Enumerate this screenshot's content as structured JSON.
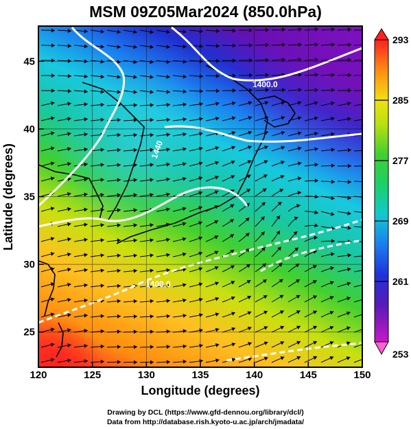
{
  "title": "MSM 09Z05Mar2024 (850.0hPa)",
  "x_axis": {
    "label": "Longitude (degrees)",
    "ticks": [
      "120",
      "125",
      "130",
      "135",
      "140",
      "145",
      "150"
    ],
    "range": [
      120,
      150
    ]
  },
  "y_axis": {
    "label": "Latitude  (degrees)",
    "ticks": [
      "25",
      "30",
      "35",
      "40",
      "45"
    ],
    "range": [
      22.4,
      47.6
    ]
  },
  "colorbar": {
    "ticks": [
      "293",
      "285",
      "277",
      "269",
      "261",
      "253"
    ],
    "range": [
      253,
      293
    ]
  },
  "contour_labels": [
    "1400.0",
    "1440",
    "1400.0"
  ],
  "credits": [
    "Drawing by DCL (https://www.gfd-dennou.org/library/dcl/)",
    "Data from http://database.rish.kyoto-u.ac.jp/arch/jmadata/"
  ],
  "colors": {
    "warm": "#ff3030",
    "cold": "#a000d0",
    "land": "#000000",
    "contour": "#ffffff"
  }
}
